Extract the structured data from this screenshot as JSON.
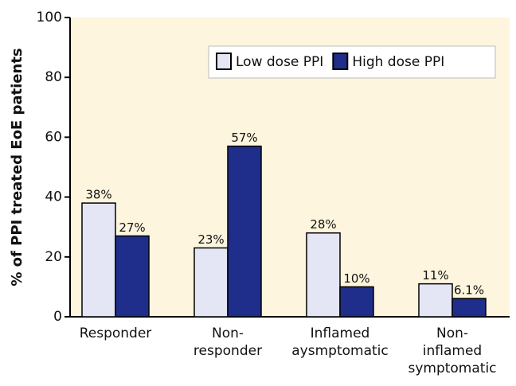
{
  "chart_data": {
    "type": "bar",
    "y_label": "% of PPI treated EoE patients",
    "categories": [
      [
        "Responder"
      ],
      [
        "Non-",
        "responder"
      ],
      [
        "Inflamed",
        "aysmptomatic"
      ],
      [
        "Non-",
        "inflamed",
        "symptomatic"
      ]
    ],
    "series": [
      {
        "name": "Low dose PPI",
        "color": "#e4e5f5",
        "values": [
          38,
          23,
          28,
          11
        ],
        "value_labels": [
          "38%",
          "23%",
          "28%",
          "11%"
        ]
      },
      {
        "name": "High dose PPI",
        "color": "#1f2e8a",
        "values": [
          27,
          57,
          10,
          6.1
        ],
        "value_labels": [
          "27%",
          "57%",
          "10%",
          "6.1%"
        ]
      }
    ],
    "ylim": [
      0,
      100
    ],
    "yticks": [
      0,
      20,
      40,
      60,
      80,
      100
    ],
    "background": "#fdf5dd",
    "legend": "upper right"
  }
}
